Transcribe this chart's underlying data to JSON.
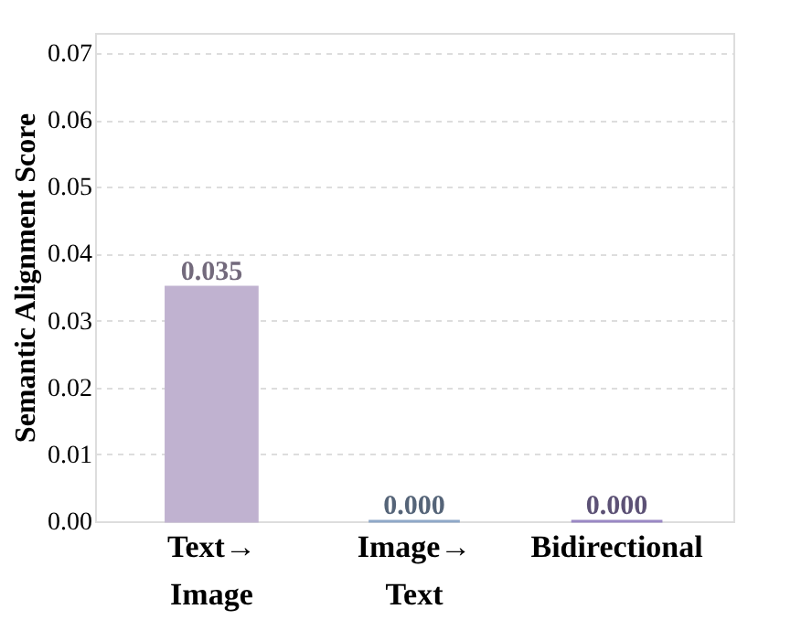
{
  "chart_data": {
    "type": "bar",
    "categories": [
      "Text→ Image",
      "Image→ Text",
      "Bidirectional"
    ],
    "values": [
      0.035,
      0.0,
      0.0
    ],
    "colors": [
      "#c0b2d0",
      "#8fa8c8",
      "#9a88c4"
    ],
    "ylabel": "Semantic Alignment Score",
    "ylim": [
      0,
      0.073
    ],
    "yticks": [
      {
        "value": 0,
        "label": "0.00"
      },
      {
        "value": 0.01,
        "label": "0.01"
      },
      {
        "value": 0.02,
        "label": "0.02"
      },
      {
        "value": 0.03,
        "label": "0.03"
      },
      {
        "value": 0.04,
        "label": "0.04"
      },
      {
        "value": 0.05,
        "label": "0.05"
      },
      {
        "value": 0.06,
        "label": "0.06"
      },
      {
        "value": 0.07,
        "label": "0.07"
      }
    ],
    "value_labels": [
      "0.035",
      "0.000",
      "0.000"
    ],
    "grid": "y"
  }
}
